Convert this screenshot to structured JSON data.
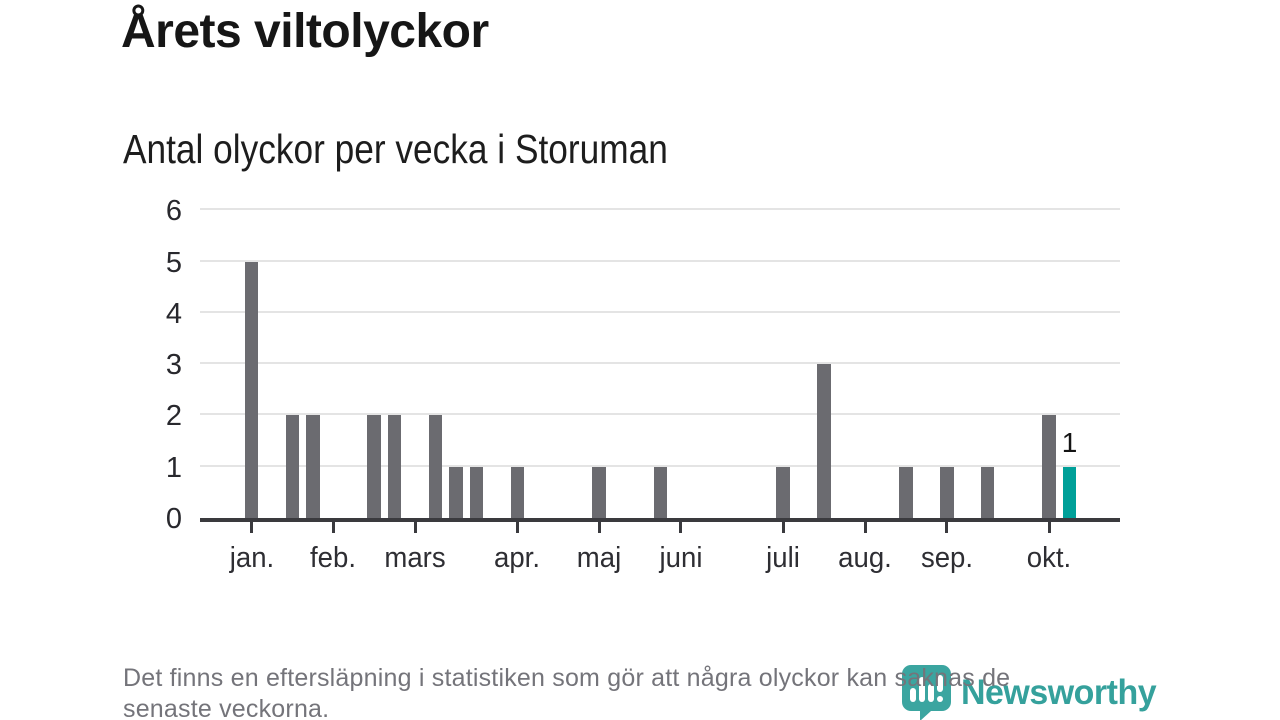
{
  "header": {
    "title": "Årets viltolyckor",
    "subtitle": "Antal olyckor per vecka i Storuman"
  },
  "footer": {
    "lines": [
      "Det finns en eftersläpning i statistiken som gör att några olyckor kan saknas de",
      "senaste veckorna."
    ]
  },
  "logo": {
    "name": "Newsworthy",
    "icon": "newsworthy-chart-bubble-icon",
    "text_color": "#35a19c",
    "icon_color": "#3ba5a0"
  },
  "colors": {
    "bar": "#6b6b70",
    "highlight": "#00a099",
    "gridline": "#e4e4e4",
    "axis": "#3a3a3e",
    "background": "#ffffff"
  },
  "chart_data": {
    "type": "bar",
    "title": "Årets viltolyckor",
    "subtitle": "Antal olyckor per vecka i Storuman",
    "xlabel": "",
    "ylabel": "",
    "x_unit": "week",
    "weeks": [
      1,
      2,
      3,
      4,
      5,
      6,
      7,
      8,
      9,
      10,
      11,
      12,
      13,
      14,
      15,
      16,
      17,
      18,
      19,
      20,
      21,
      22,
      23,
      24,
      25,
      26,
      27,
      28,
      29,
      30,
      31,
      32,
      33,
      34,
      35,
      36,
      37,
      38,
      39,
      40,
      41
    ],
    "series": [
      {
        "name": "Antal olyckor",
        "values": [
          5,
          0,
          2,
          2,
          0,
          0,
          2,
          2,
          0,
          2,
          1,
          1,
          0,
          1,
          0,
          0,
          0,
          1,
          0,
          0,
          1,
          0,
          0,
          0,
          0,
          0,
          1,
          0,
          3,
          0,
          0,
          0,
          1,
          0,
          1,
          0,
          1,
          0,
          0,
          2,
          1
        ]
      }
    ],
    "highlight": {
      "week": 41,
      "value": 1,
      "label": "1"
    },
    "month_ticks": [
      {
        "label": "jan.",
        "week": 1
      },
      {
        "label": "feb.",
        "week": 5
      },
      {
        "label": "mars",
        "week": 9
      },
      {
        "label": "apr.",
        "week": 14
      },
      {
        "label": "maj",
        "week": 18
      },
      {
        "label": "juni",
        "week": 22
      },
      {
        "label": "juli",
        "week": 27
      },
      {
        "label": "aug.",
        "week": 31
      },
      {
        "label": "sep.",
        "week": 35
      },
      {
        "label": "okt.",
        "week": 40
      }
    ],
    "yticks": [
      0,
      1,
      2,
      3,
      4,
      5,
      6
    ],
    "ylim": [
      0,
      6
    ],
    "grid": "horizontal-only",
    "legend": "none"
  }
}
